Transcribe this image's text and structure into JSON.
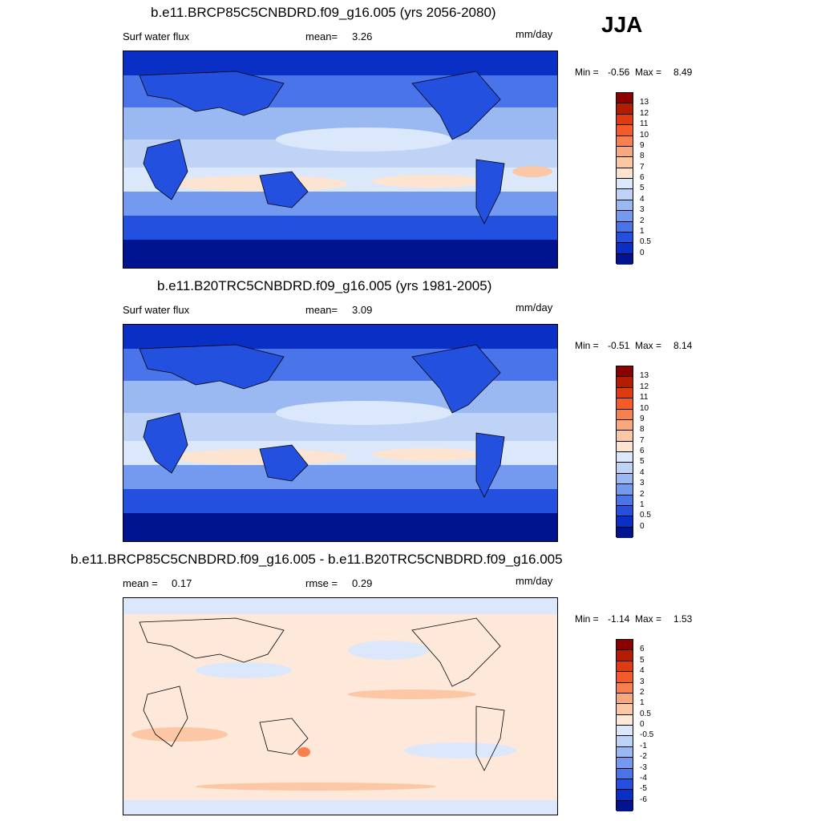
{
  "season": "JJA",
  "panels": [
    {
      "title": "b.e11.BRCP85C5CNBDRD.f09_g16.005 (yrs 2056-2080)",
      "variable": "Surf water flux",
      "stat1_label": "mean=",
      "stat1_value": "3.26",
      "units": "mm/day",
      "min_label": "Min =",
      "min_value": "-0.56",
      "max_label": "Max =",
      "max_value": "8.49",
      "levels": [
        "13",
        "12",
        "11",
        "10",
        "9",
        "8",
        "7",
        "6",
        "5",
        "4",
        "3",
        "2",
        "1",
        "0.5",
        "0"
      ],
      "colors": [
        "#8b0000",
        "#b31c00",
        "#e03a10",
        "#f45a2a",
        "#f7814e",
        "#f9a77c",
        "#fbc7a5",
        "#fde4d0",
        "#dbe8fb",
        "#bed3f6",
        "#9ab8f2",
        "#749af0",
        "#4a74ea",
        "#2450e0",
        "#0a2fc4",
        "#001490"
      ]
    },
    {
      "title": "b.e11.B20TRC5CNBDRD.f09_g16.005 (yrs 1981-2005)",
      "variable": "Surf water flux",
      "stat1_label": "mean=",
      "stat1_value": "3.09",
      "units": "mm/day",
      "min_label": "Min =",
      "min_value": "-0.51",
      "max_label": "Max =",
      "max_value": "8.14",
      "levels": [
        "13",
        "12",
        "11",
        "10",
        "9",
        "8",
        "7",
        "6",
        "5",
        "4",
        "3",
        "2",
        "1",
        "0.5",
        "0"
      ],
      "colors": [
        "#8b0000",
        "#b31c00",
        "#e03a10",
        "#f45a2a",
        "#f7814e",
        "#f9a77c",
        "#fbc7a5",
        "#fde4d0",
        "#dbe8fb",
        "#bed3f6",
        "#9ab8f2",
        "#749af0",
        "#4a74ea",
        "#2450e0",
        "#0a2fc4",
        "#001490"
      ]
    },
    {
      "title": "b.e11.BRCP85C5CNBDRD.f09_g16.005 - b.e11.B20TRC5CNBDRD.f09_g16.005",
      "stat1_label": "mean =",
      "stat1_value": "0.17",
      "stat2_label": "rmse =",
      "stat2_value": "0.29",
      "units": "mm/day",
      "min_label": "Min =",
      "min_value": "-1.14",
      "max_label": "Max =",
      "max_value": "1.53",
      "levels": [
        "6",
        "5",
        "4",
        "3",
        "2",
        "1",
        "0.5",
        "0",
        "-0.5",
        "-1",
        "-2",
        "-3",
        "-4",
        "-5",
        "-6"
      ],
      "colors": [
        "#8b0000",
        "#b31c00",
        "#e03a10",
        "#f45a2a",
        "#f7814e",
        "#f9a77c",
        "#fbc7a5",
        "#fde8da",
        "#dbe8fb",
        "#bed3f6",
        "#9ab8f2",
        "#749af0",
        "#4a74ea",
        "#2450e0",
        "#0a2fc4",
        "#001490"
      ]
    }
  ]
}
